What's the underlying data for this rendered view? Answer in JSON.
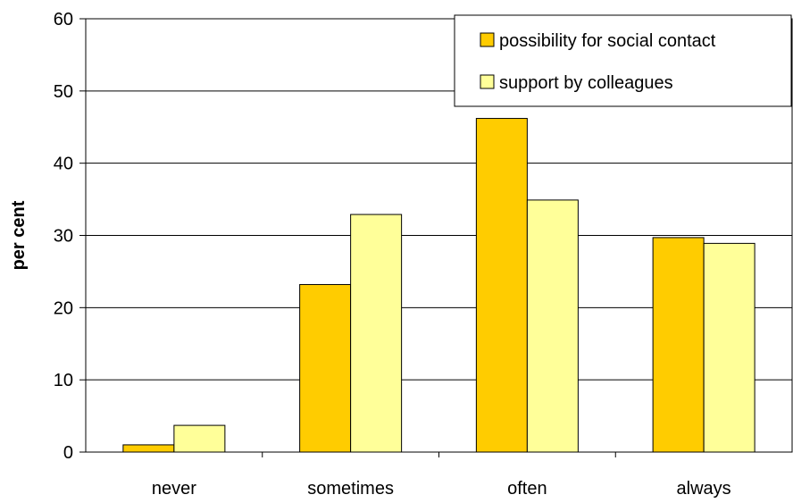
{
  "chart_data": {
    "type": "bar",
    "title": "",
    "xlabel": "",
    "ylabel": "per cent",
    "ylim": [
      0,
      60
    ],
    "yticks": [
      0,
      10,
      20,
      30,
      40,
      50,
      60
    ],
    "grid": true,
    "legend_position": "top-right",
    "categories": [
      "never",
      "sometimes",
      "often",
      "always"
    ],
    "series": [
      {
        "name": "possibility for social contact",
        "color": "#FFCC00",
        "values": [
          1,
          23.2,
          46.2,
          29.7
        ]
      },
      {
        "name": "support by colleagues",
        "color": "#FFFF99",
        "values": [
          3.7,
          32.9,
          34.9,
          28.9
        ]
      }
    ]
  }
}
